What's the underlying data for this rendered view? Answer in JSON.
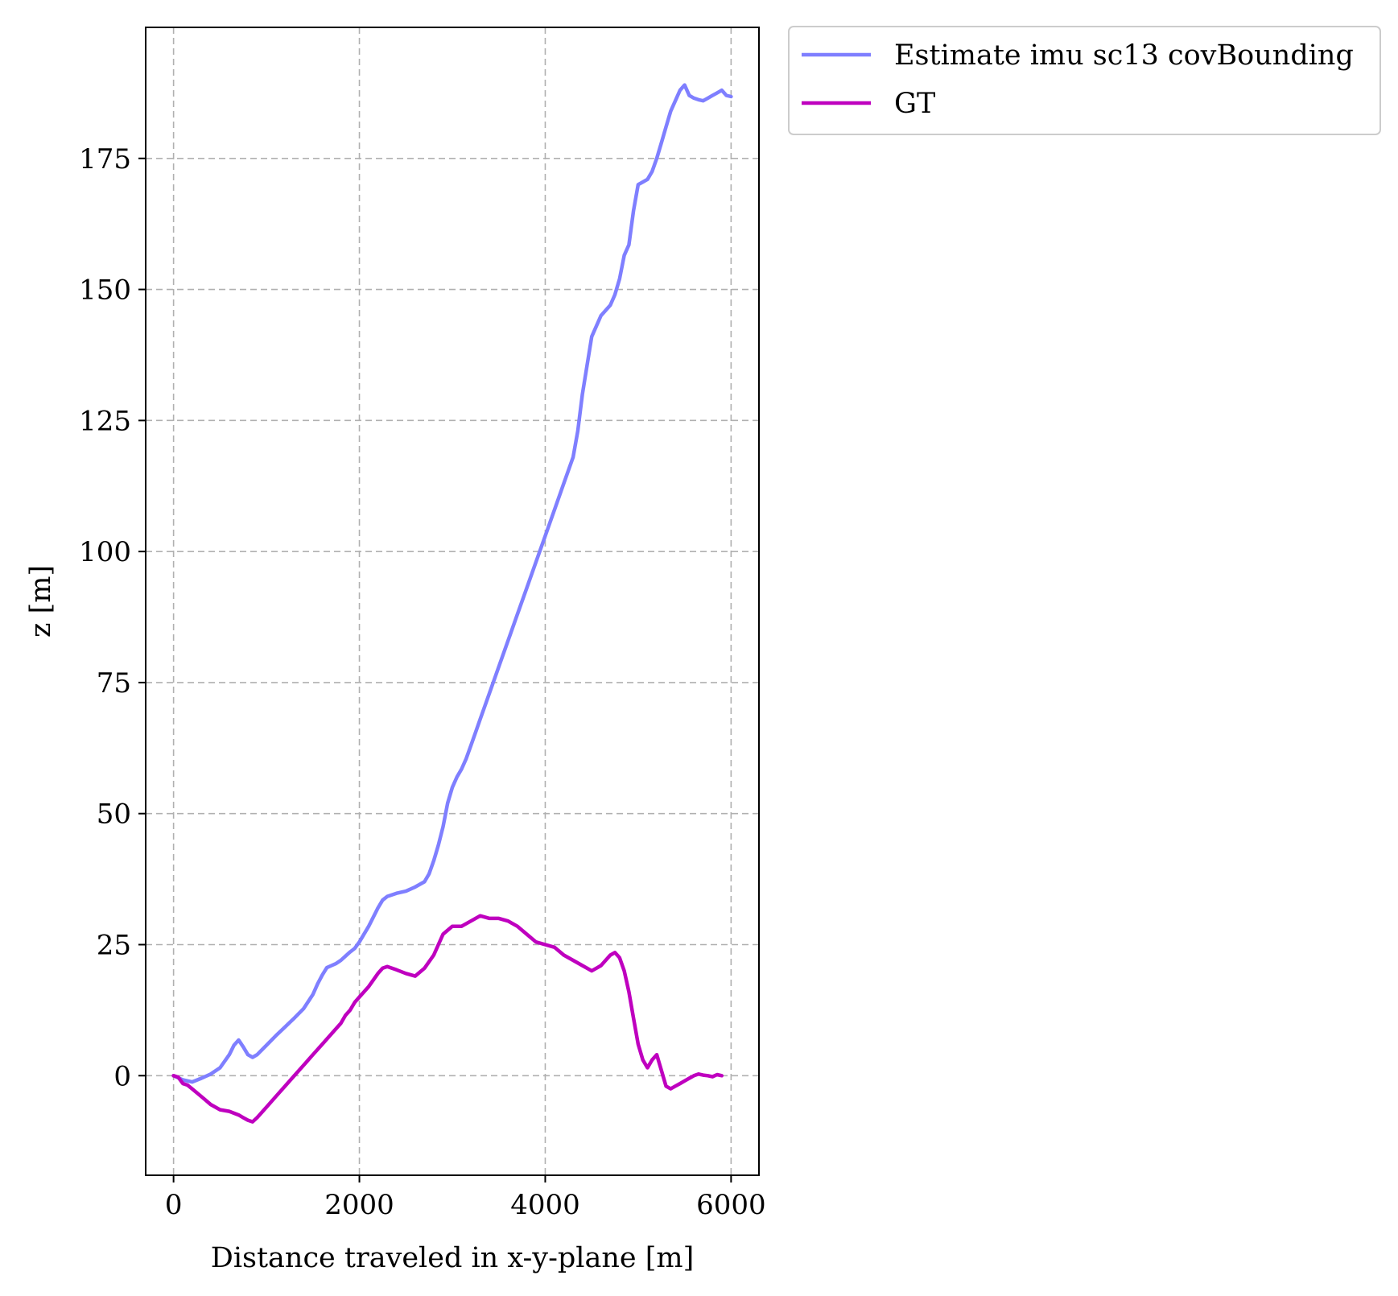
{
  "chart_data": {
    "type": "line",
    "title": "",
    "xlabel": "Distance traveled in x-y-plane [m]",
    "ylabel": "z [m]",
    "xlim": [
      -300,
      6300
    ],
    "ylim": [
      -19,
      200
    ],
    "xticks": [
      0,
      2000,
      4000,
      6000
    ],
    "yticks": [
      0,
      25,
      50,
      75,
      100,
      125,
      150,
      175
    ],
    "grid": true,
    "legend_position": "outside top-right",
    "series": [
      {
        "name": "Estimate imu sc13 covBounding",
        "color": "#7f7fff",
        "x": [
          0,
          100,
          200,
          300,
          400,
          500,
          600,
          650,
          700,
          750,
          800,
          850,
          900,
          1000,
          1100,
          1200,
          1300,
          1400,
          1500,
          1550,
          1600,
          1650,
          1700,
          1750,
          1800,
          1850,
          1900,
          1950,
          2000,
          2100,
          2200,
          2250,
          2300,
          2400,
          2500,
          2600,
          2700,
          2750,
          2800,
          2850,
          2900,
          2950,
          3000,
          3050,
          3100,
          3150,
          3200,
          3250,
          3300,
          3400,
          3500,
          3600,
          3700,
          3800,
          3900,
          4000,
          4100,
          4200,
          4300,
          4350,
          4400,
          4500,
          4600,
          4700,
          4750,
          4800,
          4850,
          4900,
          4950,
          5000,
          5050,
          5100,
          5150,
          5200,
          5250,
          5300,
          5350,
          5400,
          5450,
          5500,
          5550,
          5600,
          5650,
          5700,
          5750,
          5800,
          5850,
          5900,
          5950,
          6000
        ],
        "y": [
          0,
          -0.8,
          -1.2,
          -0.5,
          0.3,
          1.5,
          4.0,
          5.8,
          6.8,
          5.5,
          4.0,
          3.5,
          4.0,
          5.8,
          7.6,
          9.3,
          11.0,
          12.8,
          15.5,
          17.5,
          19.2,
          20.6,
          21.0,
          21.4,
          22.0,
          22.8,
          23.6,
          24.3,
          25.5,
          28.5,
          32.0,
          33.5,
          34.2,
          34.8,
          35.2,
          36.0,
          37.0,
          38.5,
          41.0,
          44.0,
          47.5,
          52.0,
          55.0,
          57.0,
          58.5,
          60.5,
          63.0,
          65.5,
          68.0,
          73.0,
          78.0,
          83.0,
          88.0,
          93.0,
          98.0,
          103.0,
          108.0,
          113.0,
          118.0,
          123.0,
          130.0,
          141.0,
          145.0,
          147.0,
          149.0,
          152.0,
          156.5,
          158.5,
          165.0,
          170.0,
          170.5,
          171.0,
          172.5,
          175.0,
          178.0,
          181.0,
          184.0,
          186.0,
          188.0,
          189.0,
          187.0,
          186.5,
          186.2,
          186.0,
          186.5,
          187.0,
          187.5,
          188.0,
          187.0,
          186.8
        ]
      },
      {
        "name": "GT",
        "color": "#bf00bf",
        "x": [
          0,
          50,
          100,
          150,
          200,
          300,
          400,
          500,
          600,
          700,
          750,
          800,
          850,
          900,
          1000,
          1100,
          1200,
          1300,
          1400,
          1500,
          1600,
          1700,
          1800,
          1850,
          1900,
          1950,
          2000,
          2100,
          2200,
          2250,
          2300,
          2400,
          2500,
          2600,
          2700,
          2800,
          2900,
          3000,
          3100,
          3200,
          3300,
          3400,
          3500,
          3600,
          3700,
          3800,
          3900,
          4000,
          4100,
          4200,
          4300,
          4400,
          4500,
          4550,
          4600,
          4700,
          4750,
          4800,
          4850,
          4900,
          4950,
          5000,
          5050,
          5100,
          5150,
          5200,
          5250,
          5300,
          5350,
          5400,
          5450,
          5500,
          5550,
          5600,
          5650,
          5700,
          5750,
          5800,
          5850,
          5900
        ],
        "y": [
          0,
          -0.3,
          -1.5,
          -1.8,
          -2.5,
          -4.0,
          -5.5,
          -6.5,
          -6.8,
          -7.5,
          -8.0,
          -8.5,
          -8.8,
          -8.0,
          -6.0,
          -4.0,
          -2.0,
          0.0,
          2.0,
          4.0,
          6.0,
          8.0,
          10.0,
          11.5,
          12.5,
          14.0,
          15.0,
          17.0,
          19.5,
          20.5,
          20.8,
          20.2,
          19.5,
          19.0,
          20.5,
          23.0,
          27.0,
          28.5,
          28.5,
          29.5,
          30.5,
          30.0,
          30.0,
          29.5,
          28.5,
          27.0,
          25.5,
          25.0,
          24.5,
          23.0,
          22.0,
          21.0,
          20.0,
          20.5,
          21.0,
          23.0,
          23.5,
          22.5,
          20.0,
          16.0,
          11.0,
          6.0,
          3.0,
          1.5,
          3.0,
          4.0,
          1.0,
          -2.0,
          -2.5,
          -2.0,
          -1.5,
          -1.0,
          -0.5,
          0.0,
          0.3,
          0.1,
          0.0,
          -0.2,
          0.2,
          0.0
        ]
      }
    ]
  }
}
